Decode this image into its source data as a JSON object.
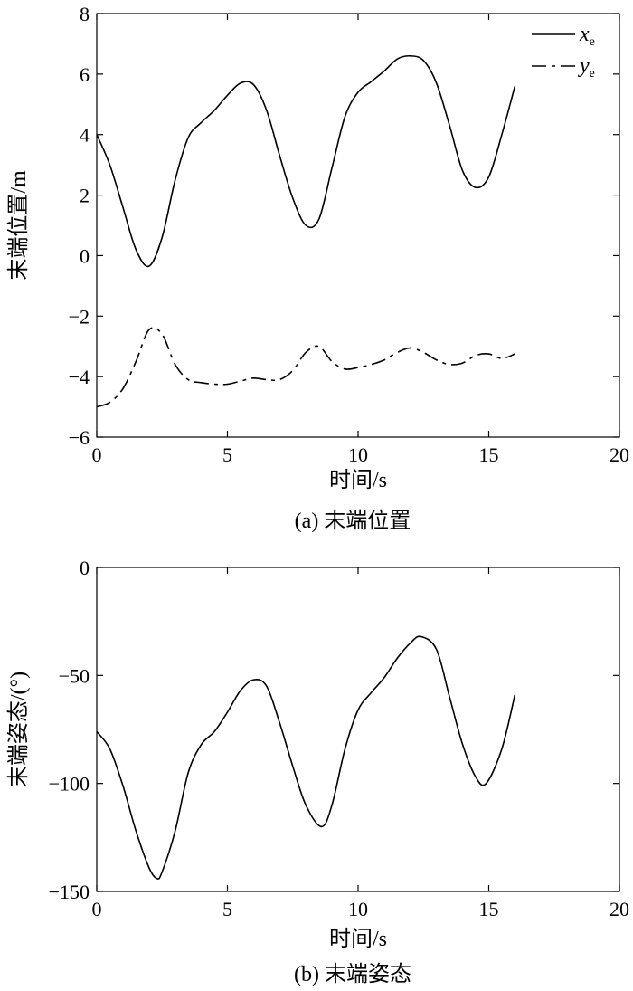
{
  "chart_data": [
    {
      "type": "line",
      "caption": "(a) 末端位置",
      "xlabel": "时间/s",
      "ylabel": "末端位置/m",
      "xlim": [
        0,
        20
      ],
      "ylim": [
        -6,
        8
      ],
      "xticks": [
        0,
        5,
        10,
        15,
        20
      ],
      "yticks": [
        -6,
        -4,
        -2,
        0,
        2,
        4,
        6,
        8
      ],
      "grid": false,
      "legend_position": "top-right",
      "series": [
        {
          "name": "x",
          "subscript": "e",
          "style": "solid",
          "x": [
            0,
            0.5,
            1,
            1.5,
            2,
            2.5,
            3,
            3.5,
            4,
            4.5,
            5,
            5.5,
            6,
            6.5,
            7,
            7.5,
            8,
            8.5,
            9,
            9.5,
            10,
            10.5,
            11,
            11.5,
            12,
            12.5,
            13,
            13.5,
            14,
            14.5,
            15,
            15.5,
            16
          ],
          "values": [
            4.0,
            3.0,
            1.6,
            0.2,
            -0.35,
            0.6,
            2.5,
            3.9,
            4.4,
            4.8,
            5.3,
            5.7,
            5.65,
            4.8,
            3.3,
            1.9,
            1.0,
            1.2,
            2.9,
            4.6,
            5.4,
            5.75,
            6.1,
            6.5,
            6.6,
            6.45,
            5.7,
            4.3,
            2.8,
            2.25,
            2.6,
            4.0,
            5.6
          ]
        },
        {
          "name": "y",
          "subscript": "e",
          "style": "dashdot",
          "x": [
            0,
            0.5,
            1,
            1.5,
            2,
            2.5,
            3,
            3.5,
            4,
            4.5,
            5,
            5.5,
            6,
            6.5,
            7,
            7.5,
            8,
            8.5,
            9,
            9.5,
            10,
            10.5,
            11,
            11.5,
            12,
            12.5,
            13,
            13.5,
            14,
            14.5,
            15,
            15.5,
            16
          ],
          "values": [
            -5.0,
            -4.85,
            -4.4,
            -3.5,
            -2.45,
            -2.6,
            -3.6,
            -4.1,
            -4.2,
            -4.25,
            -4.25,
            -4.15,
            -4.05,
            -4.1,
            -4.1,
            -3.8,
            -3.2,
            -3.0,
            -3.5,
            -3.75,
            -3.7,
            -3.6,
            -3.45,
            -3.2,
            -3.05,
            -3.2,
            -3.45,
            -3.6,
            -3.55,
            -3.3,
            -3.25,
            -3.4,
            -3.25
          ]
        }
      ]
    },
    {
      "type": "line",
      "caption": "(b) 末端姿态",
      "xlabel": "时间/s",
      "ylabel": "末端姿态/(°)",
      "xlim": [
        0,
        20
      ],
      "ylim": [
        -150,
        0
      ],
      "xticks": [
        0,
        5,
        10,
        15,
        20
      ],
      "yticks": [
        -150,
        -100,
        -50,
        0
      ],
      "grid": false,
      "series": [
        {
          "style": "solid",
          "x": [
            0,
            0.5,
            1,
            1.5,
            2,
            2.3,
            2.5,
            3,
            3.5,
            4,
            4.5,
            5,
            5.5,
            6,
            6.5,
            7,
            7.5,
            8,
            8.6,
            9,
            9.5,
            10,
            10.5,
            11,
            11.5,
            12,
            12.4,
            13,
            13.5,
            14,
            14.5,
            14.9,
            15.5,
            16
          ],
          "values": [
            -76,
            -84,
            -101,
            -122,
            -139,
            -144,
            -141,
            -122,
            -95,
            -82,
            -76,
            -67,
            -57,
            -52,
            -55,
            -72,
            -92,
            -110,
            -120,
            -110,
            -84,
            -66,
            -58,
            -51,
            -42,
            -35,
            -32,
            -38,
            -60,
            -82,
            -97,
            -100,
            -84,
            -59
          ]
        }
      ]
    }
  ]
}
